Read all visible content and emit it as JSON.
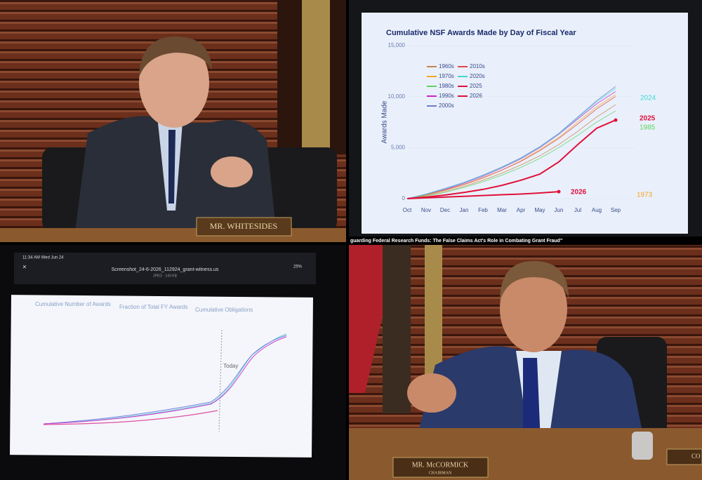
{
  "top_left": {
    "nameplate": "MR. WHITESIDES"
  },
  "top_right": {
    "chart_data": {
      "type": "line",
      "title": "Cumulative NSF Awards Made by Day of Fiscal Year",
      "y_label": "Awards Made",
      "categories": [
        "Oct",
        "Nov",
        "Dec",
        "Jan",
        "Feb",
        "Mar",
        "Apr",
        "May",
        "Jun",
        "Jul",
        "Aug",
        "Sep"
      ],
      "ylim": [
        0,
        15000
      ],
      "yticks": [
        0,
        {
          "value": 5000,
          "label": "5,000"
        },
        {
          "value": 10000,
          "label": "10,000"
        },
        {
          "value": 15000,
          "label": "15,000"
        }
      ],
      "series": [
        {
          "name": "1960s",
          "color": "#c8844e",
          "values": [
            0,
            300,
            700,
            1200,
            1800,
            2500,
            3300,
            4200,
            5300,
            6600,
            8000,
            9200
          ]
        },
        {
          "name": "1970s",
          "color": "#f5a623",
          "values": [
            0,
            350,
            800,
            1350,
            2000,
            2800,
            3700,
            4800,
            6000,
            7500,
            9000,
            10200
          ]
        },
        {
          "name": "1980s",
          "color": "#5fd35f",
          "values": [
            0,
            250,
            600,
            1100,
            1650,
            2300,
            3050,
            3950,
            5000,
            6200,
            7500,
            8600
          ]
        },
        {
          "name": "1990s",
          "color": "#d020d0",
          "values": [
            0,
            400,
            900,
            1500,
            2200,
            3000,
            3900,
            5000,
            6300,
            7800,
            9300,
            10500
          ]
        },
        {
          "name": "2000s",
          "color": "#6a7fd0",
          "values": [
            0,
            450,
            1000,
            1600,
            2300,
            3100,
            4000,
            5100,
            6400,
            8000,
            9600,
            11000
          ]
        },
        {
          "name": "2010s",
          "color": "#e04848",
          "values": [
            0,
            380,
            850,
            1400,
            2050,
            2800,
            3650,
            4700,
            5900,
            7300,
            8800,
            10000
          ]
        },
        {
          "name": "2020s",
          "color": "#40d8d0",
          "values": [
            0,
            420,
            950,
            1550,
            2250,
            3050,
            3950,
            5050,
            6350,
            7900,
            9500,
            10800
          ]
        },
        {
          "name": "2025",
          "color": "#e0103a",
          "values": [
            0,
            150,
            350,
            600,
            900,
            1300,
            1800,
            2400,
            3600,
            5300,
            6900,
            7700
          ]
        },
        {
          "name": "2026",
          "color": "#e0103a",
          "values": [
            0,
            80,
            150,
            220,
            300,
            380,
            450,
            550,
            680,
            null,
            null,
            null
          ]
        }
      ],
      "annotations": [
        {
          "text": "2024",
          "color": "#40d8d0"
        },
        {
          "text": "2025",
          "color": "#e0103a"
        },
        {
          "text": "1985",
          "color": "#5fd35f"
        },
        {
          "text": "2026",
          "color": "#e0103a"
        },
        {
          "text": "1973",
          "color": "#f5a623"
        }
      ]
    },
    "caption": "guarding Federal Research Funds: The False Claims Act's Role in Combating Grant Fraud\""
  },
  "bottom_left": {
    "status_time": "11:34 AM  Wed Jun 24",
    "battery": "25%",
    "file_name": "Screenshot_24-6-2026_112924_grant-witness.us",
    "file_info": "JPEG · 143 KB",
    "tabs": [
      "Cumulative Number of Awards",
      "Fraction of Total FY Awards",
      "Cumulative Obligations"
    ],
    "today_label": "Today"
  },
  "bottom_right": {
    "nameplate": "MR. McCORMICK",
    "nameplate_sub": "CHAIRMAN",
    "side_plate": "CO"
  }
}
